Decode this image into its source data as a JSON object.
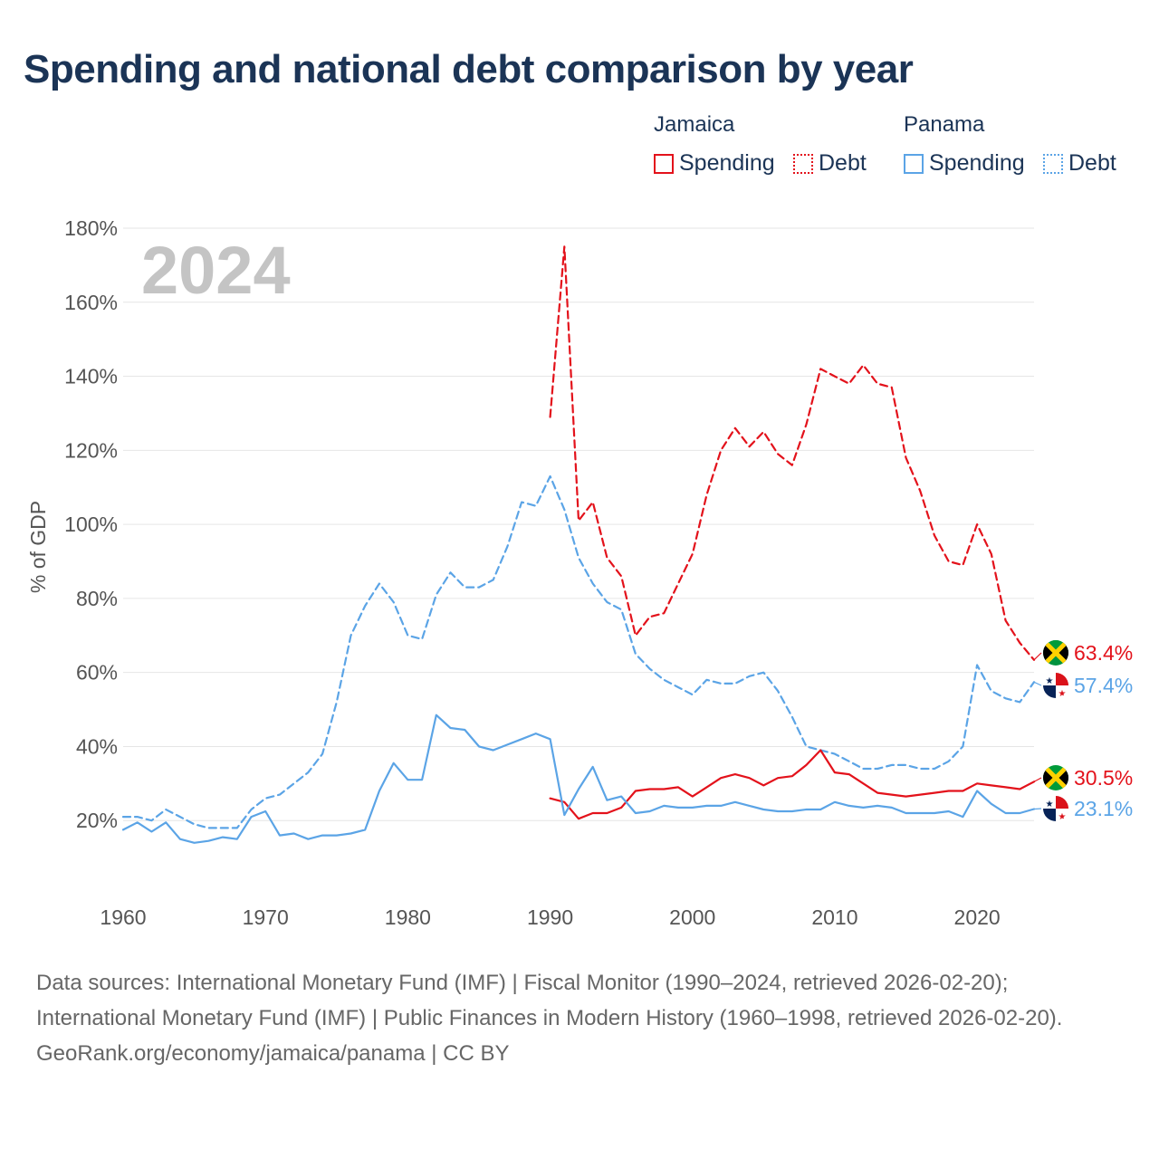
{
  "title": "Spending and national debt comparison by year",
  "legend": {
    "groups": [
      {
        "country": "Jamaica",
        "color": "#e3121b",
        "items": [
          {
            "label": "Spending",
            "style": "solid"
          },
          {
            "label": "Debt",
            "style": "dotted"
          }
        ]
      },
      {
        "country": "Panama",
        "color": "#5ba4e6",
        "items": [
          {
            "label": "Spending",
            "style": "solid"
          },
          {
            "label": "Debt",
            "style": "dotted"
          }
        ]
      }
    ]
  },
  "year_label": "2024",
  "footer": {
    "sources": "Data sources: International Monetary Fund (IMF) | Fiscal Monitor (1990–2024, retrieved 2026-02-20); International Monetary Fund (IMF) | Public Finances in Modern History (1960–1998, retrieved 2026-02-20).",
    "credit": "GeoRank.org/economy/jamaica/panama | CC BY"
  },
  "chart_data": {
    "type": "line",
    "title": "Spending and national debt comparison by year",
    "xlabel": "",
    "ylabel": "% of GDP",
    "xlim": [
      1960,
      2024
    ],
    "ylim": [
      0,
      180
    ],
    "x_ticks": [
      1960,
      1970,
      1980,
      1990,
      2000,
      2010,
      2020
    ],
    "x_tick_labels": [
      "1960",
      "1970",
      "1980",
      "1990",
      "2000",
      "2010",
      "2020"
    ],
    "y_ticks": [
      20,
      40,
      60,
      80,
      100,
      120,
      140,
      160,
      180
    ],
    "y_tick_labels": [
      "20%",
      "40%",
      "60%",
      "80%",
      "100%",
      "120%",
      "140%",
      "160%",
      "180%"
    ],
    "grid": true,
    "series": [
      {
        "name": "Jamaica Debt",
        "country": "Jamaica",
        "metric": "Debt",
        "color": "#e3121b",
        "dash": "dashed",
        "start_year": 1990,
        "values": [
          129,
          175,
          101,
          106,
          91,
          86,
          70,
          75,
          76,
          84,
          92,
          108,
          120,
          126,
          121,
          125,
          119,
          116,
          127,
          142,
          140,
          138,
          143,
          138,
          137,
          118,
          109,
          97,
          90,
          89,
          100,
          92,
          74,
          68,
          63.4
        ],
        "end_label": "63.4%"
      },
      {
        "name": "Panama Debt",
        "country": "Panama",
        "metric": "Debt",
        "color": "#5ba4e6",
        "dash": "dashed",
        "start_year": 1960,
        "values": [
          21,
          21,
          20,
          23,
          21,
          19,
          18,
          18,
          18,
          23,
          26,
          27,
          30,
          33,
          38,
          52,
          70,
          78,
          84,
          79,
          70,
          69,
          81,
          87,
          83,
          83,
          85,
          94,
          106,
          105,
          113,
          104,
          91,
          84,
          79,
          77,
          65,
          61,
          58,
          56,
          54,
          58,
          57,
          57,
          59,
          60,
          55,
          48,
          40,
          39,
          38,
          36,
          34,
          34,
          35,
          35,
          34,
          34,
          36,
          40,
          62,
          55,
          53,
          52,
          57.4
        ],
        "end_label": "57.4%"
      },
      {
        "name": "Jamaica Spending",
        "country": "Jamaica",
        "metric": "Spending",
        "color": "#e3121b",
        "dash": "solid",
        "start_year": 1990,
        "values": [
          26,
          25,
          20.5,
          22,
          22,
          23.5,
          28,
          28.5,
          28.5,
          29,
          26.5,
          29,
          31.5,
          32.5,
          31.5,
          29.5,
          31.5,
          32,
          35,
          39,
          33,
          32.5,
          30,
          27.5,
          27,
          26.5,
          27,
          27.5,
          28,
          28,
          30,
          29.5,
          29,
          28.5,
          30.5
        ],
        "end_label": "30.5%"
      },
      {
        "name": "Panama Spending",
        "country": "Panama",
        "metric": "Spending",
        "color": "#5ba4e6",
        "dash": "solid",
        "start_year": 1960,
        "values": [
          17.5,
          19.5,
          17,
          19.5,
          15,
          14,
          14.5,
          15.5,
          15,
          21,
          22.5,
          16,
          16.5,
          15,
          16,
          16,
          16.5,
          17.5,
          28,
          35.5,
          31,
          31,
          48.5,
          45,
          44.5,
          40,
          39,
          40.5,
          42,
          43.5,
          42,
          21.5,
          28.5,
          34.5,
          25.5,
          26.5,
          22,
          22.5,
          24,
          23.5,
          23.5,
          24,
          24,
          25,
          24,
          23,
          22.5,
          22.5,
          23,
          23,
          25,
          24,
          23.5,
          24,
          23.5,
          22,
          22,
          22,
          22.5,
          21,
          28,
          24.5,
          22,
          22,
          23.1
        ],
        "end_label": "23.1%"
      }
    ]
  }
}
